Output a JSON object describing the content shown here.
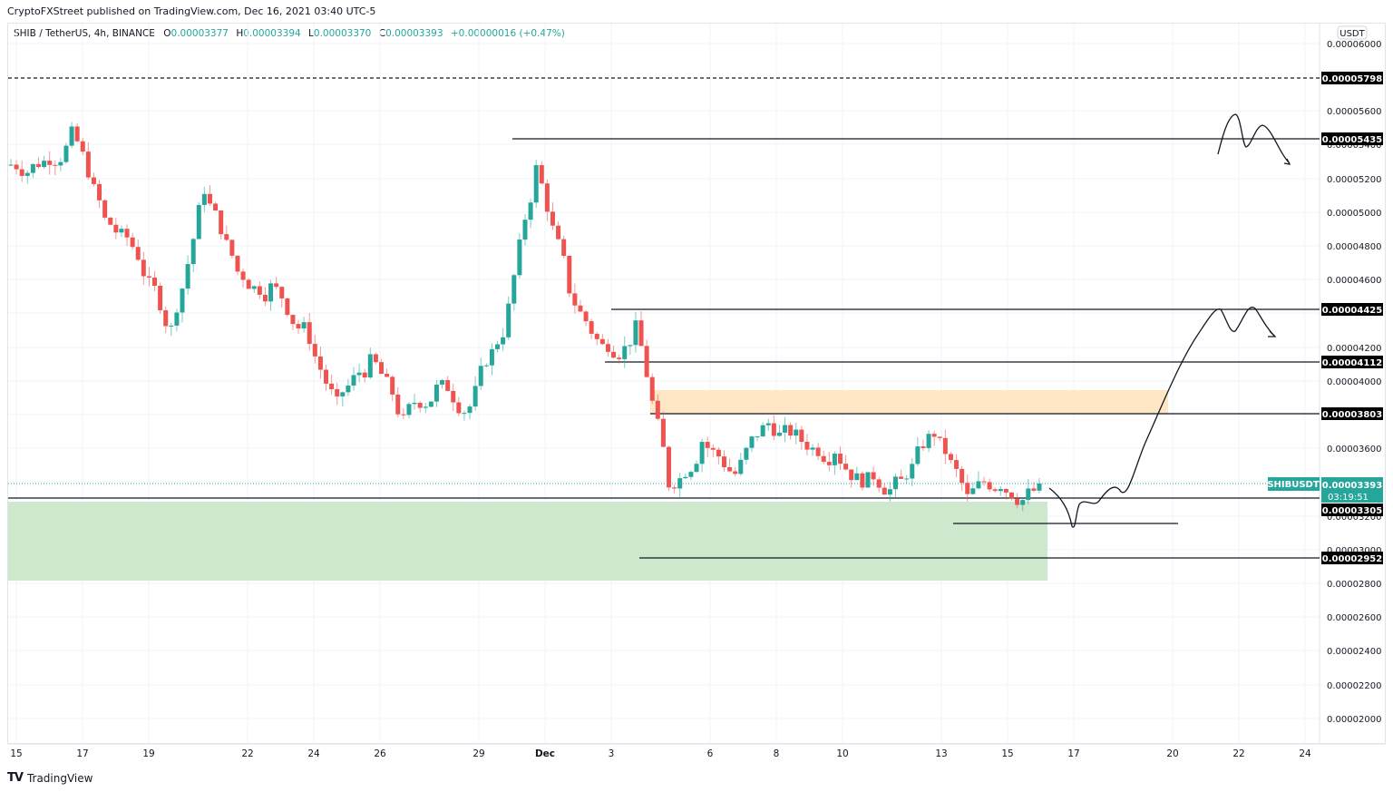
{
  "header": {
    "published": "CryptoFXStreet published on TradingView.com, Dec 16, 2021 03:40 UTC-5"
  },
  "legend": {
    "symbol": "SHIB / TetherUS, 4h, BINANCE",
    "open_label": "O",
    "open": "0.00003377",
    "high_label": "H",
    "high": "0.00003394",
    "low_label": "L",
    "low": "0.00003370",
    "close_label": "C",
    "close": "0.00003393",
    "change": "+0.00000016 (+0.47%)"
  },
  "price_axis": {
    "currency": "USDT",
    "ticks": [
      "0.00006000",
      "0.00005600",
      "0.00005400",
      "0.00005200",
      "0.00005000",
      "0.00004800",
      "0.00004600",
      "0.00004200",
      "0.00004000",
      "0.00003600",
      "0.00003200",
      "0.00003000",
      "0.00002800",
      "0.00002600",
      "0.00002400",
      "0.00002200",
      "0.00002000"
    ],
    "level_tags": [
      "0.00005798",
      "0.00005435",
      "0.00004425",
      "0.00004112",
      "0.00003803",
      "0.00003305",
      "0.00002952"
    ],
    "current": {
      "symbol": "SHIBUSDT",
      "price": "0.00003393",
      "countdown": "03:19:51"
    }
  },
  "time_axis": {
    "labels": [
      "15",
      "17",
      "19",
      "22",
      "24",
      "26",
      "29",
      "Dec",
      "3",
      "6",
      "8",
      "10",
      "13",
      "15",
      "17",
      "20",
      "22",
      "24"
    ]
  },
  "footer": {
    "brand": "TradingView",
    "logo": "TV"
  },
  "colors": {
    "up": "#26a69a",
    "down": "#ef5350",
    "level_line": "#131722",
    "supply_zone": "#ffe6c4",
    "demand_zone": "#cde8cc",
    "tag_bg": "#000000"
  },
  "chart_data": {
    "type": "candlestick",
    "title": "SHIB / TetherUS, 4h, BINANCE",
    "xlabel": "",
    "ylabel": "USDT",
    "ylim": [
      1.92e-05,
      6.06e-05
    ],
    "grid": true,
    "x_ticks": [
      "Nov 15",
      "Nov 17",
      "Nov 19",
      "Nov 22",
      "Nov 24",
      "Nov 26",
      "Nov 29",
      "Dec 1",
      "Dec 3",
      "Dec 6",
      "Dec 8",
      "Dec 10",
      "Dec 13",
      "Dec 15",
      "Dec 17",
      "Dec 20",
      "Dec 22",
      "Dec 24"
    ],
    "horizontal_levels": [
      {
        "price": 5.798e-05,
        "style": "dashed"
      },
      {
        "price": 5.435e-05,
        "style": "solid"
      },
      {
        "price": 4.425e-05,
        "style": "solid"
      },
      {
        "price": 4.112e-05,
        "style": "solid"
      },
      {
        "price": 3.803e-05,
        "style": "solid"
      },
      {
        "price": 3.305e-05,
        "style": "solid"
      },
      {
        "price": 3.15e-05,
        "style": "solid"
      },
      {
        "price": 2.952e-05,
        "style": "solid"
      }
    ],
    "zones": [
      {
        "name": "supply",
        "from": 3.803e-05,
        "to": 3.94e-05,
        "color": "#ffe6c4"
      },
      {
        "name": "demand",
        "from": 2.83e-05,
        "to": 3.28e-05,
        "color": "#cde8cc"
      }
    ],
    "last_price": 3.393e-05,
    "close_series_approx": [
      {
        "date": "Nov 15",
        "close": 5.3e-05
      },
      {
        "date": "Nov 16",
        "close": 5.45e-05
      },
      {
        "date": "Nov 17",
        "close": 4.95e-05
      },
      {
        "date": "Nov 18",
        "close": 4.75e-05
      },
      {
        "date": "Nov 19",
        "close": 4.3e-05
      },
      {
        "date": "Nov 20",
        "close": 5.15e-05
      },
      {
        "date": "Nov 21",
        "close": 4.65e-05
      },
      {
        "date": "Nov 22",
        "close": 4.55e-05
      },
      {
        "date": "Nov 23",
        "close": 4.3e-05
      },
      {
        "date": "Nov 24",
        "close": 3.85e-05
      },
      {
        "date": "Nov 25",
        "close": 4.1e-05
      },
      {
        "date": "Nov 26",
        "close": 3.75e-05
      },
      {
        "date": "Nov 27",
        "close": 3.95e-05
      },
      {
        "date": "Nov 28",
        "close": 3.85e-05
      },
      {
        "date": "Nov 29",
        "close": 4.3e-05
      },
      {
        "date": "Nov 30",
        "close": 5.25e-05
      },
      {
        "date": "Dec 1",
        "close": 4.55e-05
      },
      {
        "date": "Dec 2",
        "close": 4.2e-05
      },
      {
        "date": "Dec 3",
        "close": 4.3e-05
      },
      {
        "date": "Dec 4",
        "close": 3.4e-05
      },
      {
        "date": "Dec 5",
        "close": 3.65e-05
      },
      {
        "date": "Dec 6",
        "close": 3.45e-05
      },
      {
        "date": "Dec 7",
        "close": 3.75e-05
      },
      {
        "date": "Dec 8",
        "close": 3.65e-05
      },
      {
        "date": "Dec 9",
        "close": 3.6e-05
      },
      {
        "date": "Dec 10",
        "close": 3.4e-05
      },
      {
        "date": "Dec 11",
        "close": 3.4e-05
      },
      {
        "date": "Dec 12",
        "close": 3.7e-05
      },
      {
        "date": "Dec 13",
        "close": 3.3e-05
      },
      {
        "date": "Dec 14",
        "close": 3.4e-05
      },
      {
        "date": "Dec 15",
        "close": 3.35e-05
      },
      {
        "date": "Dec 16",
        "close": 3.393e-05
      }
    ],
    "annotations": [
      "Hand-drawn projection: dip to ~0.0000315 then rally to ~0.00004425 double-top, pullback arrow",
      "Alternate projection: double-top near ~0.00005435, pullback arrow"
    ]
  }
}
